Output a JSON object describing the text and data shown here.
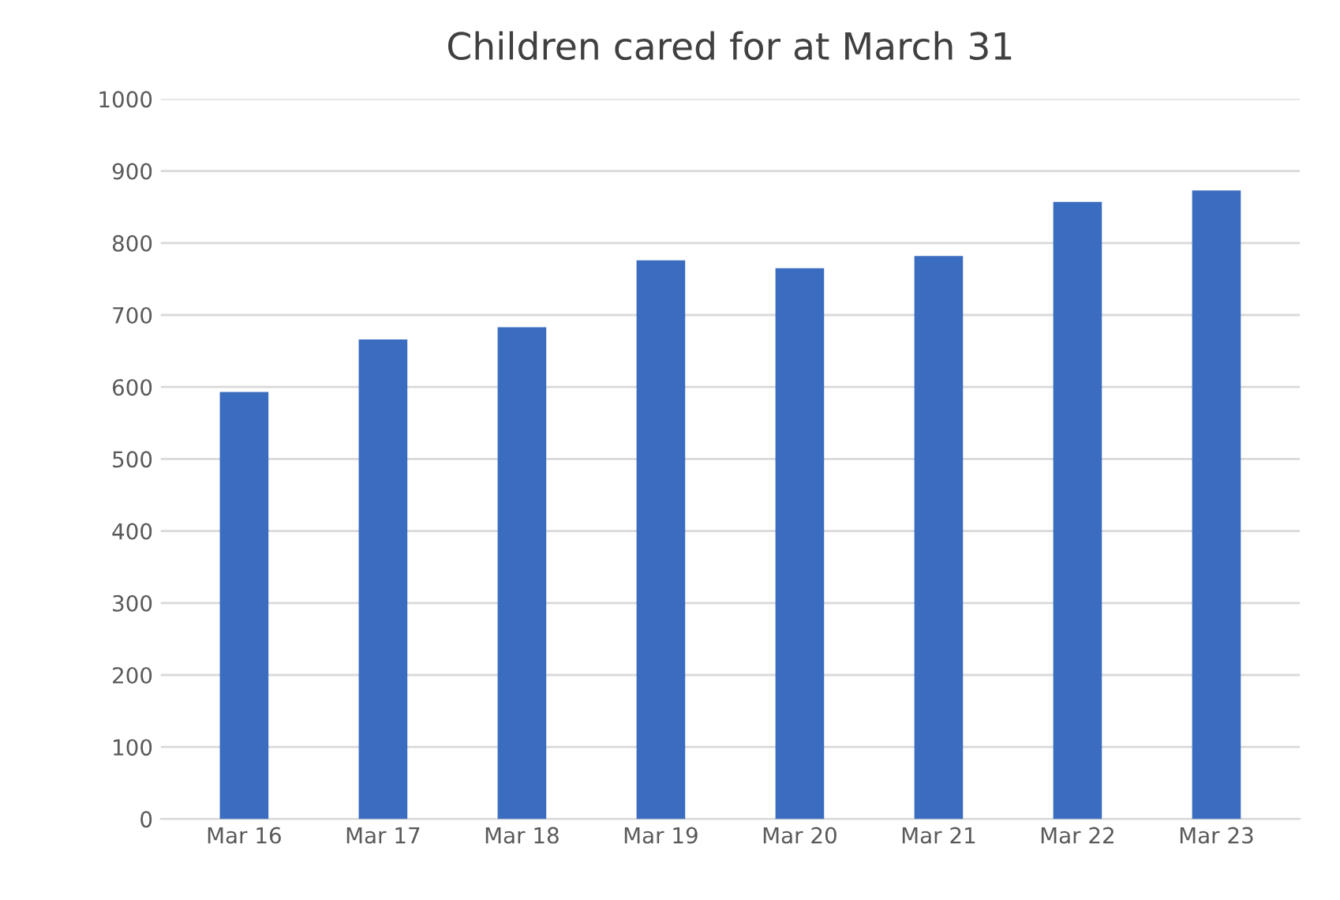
{
  "chart_data": {
    "type": "bar",
    "title": "Children cared for at March 31",
    "categories": [
      "Mar 16",
      "Mar 17",
      "Mar 18",
      "Mar 19",
      "Mar 20",
      "Mar 21",
      "Mar 22",
      "Mar 23"
    ],
    "values": [
      593,
      666,
      683,
      776,
      765,
      782,
      857,
      873
    ],
    "color": "#3a6cbf",
    "ylim": [
      0,
      1000
    ],
    "yticks": [
      0,
      100,
      200,
      300,
      400,
      500,
      600,
      700,
      800,
      900,
      1000
    ],
    "grid": "y",
    "legend": false
  }
}
